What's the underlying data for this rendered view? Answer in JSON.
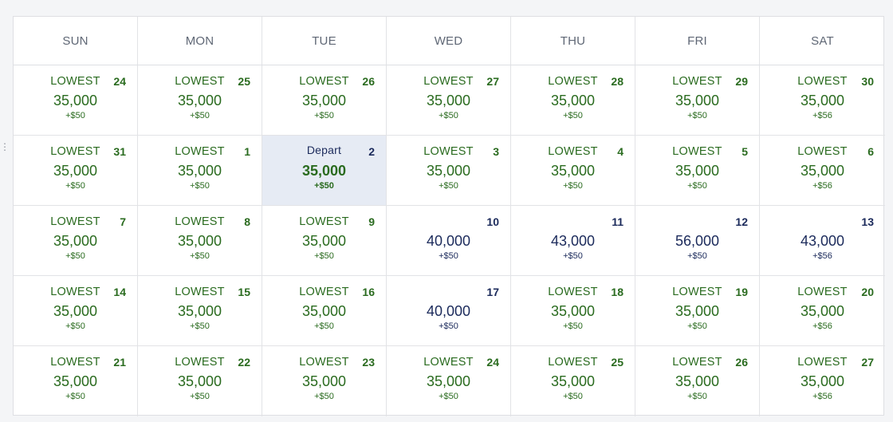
{
  "left_edge_glyph": "⋮",
  "weekdays": [
    "SUN",
    "MON",
    "TUE",
    "WED",
    "THU",
    "FRI",
    "SAT"
  ],
  "colors": {
    "lowest_green": "#2a6b1f",
    "regular_navy": "#1b2a5b",
    "selected_bg": "#e6ebf4"
  },
  "weeks": [
    [
      {
        "date": "24",
        "label": "LOWEST",
        "price": "35,000",
        "fee": "+$50",
        "type": "lowest"
      },
      {
        "date": "25",
        "label": "LOWEST",
        "price": "35,000",
        "fee": "+$50",
        "type": "lowest"
      },
      {
        "date": "26",
        "label": "LOWEST",
        "price": "35,000",
        "fee": "+$50",
        "type": "lowest"
      },
      {
        "date": "27",
        "label": "LOWEST",
        "price": "35,000",
        "fee": "+$50",
        "type": "lowest"
      },
      {
        "date": "28",
        "label": "LOWEST",
        "price": "35,000",
        "fee": "+$50",
        "type": "lowest"
      },
      {
        "date": "29",
        "label": "LOWEST",
        "price": "35,000",
        "fee": "+$50",
        "type": "lowest"
      },
      {
        "date": "30",
        "label": "LOWEST",
        "price": "35,000",
        "fee": "+$56",
        "type": "lowest"
      }
    ],
    [
      {
        "date": "31",
        "label": "LOWEST",
        "price": "35,000",
        "fee": "+$50",
        "type": "lowest"
      },
      {
        "date": "1",
        "label": "LOWEST",
        "price": "35,000",
        "fee": "+$50",
        "type": "lowest"
      },
      {
        "date": "2",
        "label": "Depart",
        "price": "35,000",
        "fee": "+$50",
        "type": "selected"
      },
      {
        "date": "3",
        "label": "LOWEST",
        "price": "35,000",
        "fee": "+$50",
        "type": "lowest"
      },
      {
        "date": "4",
        "label": "LOWEST",
        "price": "35,000",
        "fee": "+$50",
        "type": "lowest"
      },
      {
        "date": "5",
        "label": "LOWEST",
        "price": "35,000",
        "fee": "+$50",
        "type": "lowest"
      },
      {
        "date": "6",
        "label": "LOWEST",
        "price": "35,000",
        "fee": "+$56",
        "type": "lowest"
      }
    ],
    [
      {
        "date": "7",
        "label": "LOWEST",
        "price": "35,000",
        "fee": "+$50",
        "type": "lowest"
      },
      {
        "date": "8",
        "label": "LOWEST",
        "price": "35,000",
        "fee": "+$50",
        "type": "lowest"
      },
      {
        "date": "9",
        "label": "LOWEST",
        "price": "35,000",
        "fee": "+$50",
        "type": "lowest"
      },
      {
        "date": "10",
        "label": "",
        "price": "40,000",
        "fee": "+$50",
        "type": "regular"
      },
      {
        "date": "11",
        "label": "",
        "price": "43,000",
        "fee": "+$50",
        "type": "regular"
      },
      {
        "date": "12",
        "label": "",
        "price": "56,000",
        "fee": "+$50",
        "type": "regular"
      },
      {
        "date": "13",
        "label": "",
        "price": "43,000",
        "fee": "+$56",
        "type": "regular"
      }
    ],
    [
      {
        "date": "14",
        "label": "LOWEST",
        "price": "35,000",
        "fee": "+$50",
        "type": "lowest"
      },
      {
        "date": "15",
        "label": "LOWEST",
        "price": "35,000",
        "fee": "+$50",
        "type": "lowest"
      },
      {
        "date": "16",
        "label": "LOWEST",
        "price": "35,000",
        "fee": "+$50",
        "type": "lowest"
      },
      {
        "date": "17",
        "label": "",
        "price": "40,000",
        "fee": "+$50",
        "type": "regular"
      },
      {
        "date": "18",
        "label": "LOWEST",
        "price": "35,000",
        "fee": "+$50",
        "type": "lowest"
      },
      {
        "date": "19",
        "label": "LOWEST",
        "price": "35,000",
        "fee": "+$50",
        "type": "lowest"
      },
      {
        "date": "20",
        "label": "LOWEST",
        "price": "35,000",
        "fee": "+$56",
        "type": "lowest"
      }
    ],
    [
      {
        "date": "21",
        "label": "LOWEST",
        "price": "35,000",
        "fee": "+$50",
        "type": "lowest"
      },
      {
        "date": "22",
        "label": "LOWEST",
        "price": "35,000",
        "fee": "+$50",
        "type": "lowest"
      },
      {
        "date": "23",
        "label": "LOWEST",
        "price": "35,000",
        "fee": "+$50",
        "type": "lowest"
      },
      {
        "date": "24",
        "label": "LOWEST",
        "price": "35,000",
        "fee": "+$50",
        "type": "lowest"
      },
      {
        "date": "25",
        "label": "LOWEST",
        "price": "35,000",
        "fee": "+$50",
        "type": "lowest"
      },
      {
        "date": "26",
        "label": "LOWEST",
        "price": "35,000",
        "fee": "+$50",
        "type": "lowest"
      },
      {
        "date": "27",
        "label": "LOWEST",
        "price": "35,000",
        "fee": "+$56",
        "type": "lowest"
      }
    ]
  ]
}
